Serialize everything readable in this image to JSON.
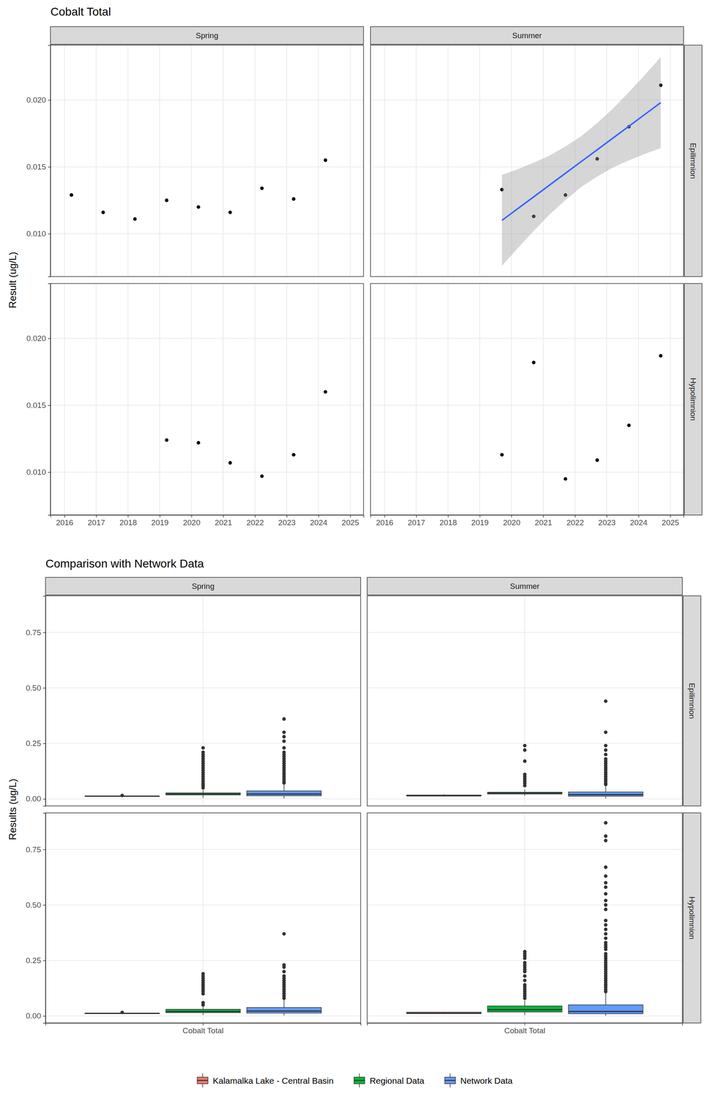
{
  "chart_data": [
    {
      "type": "scatter",
      "title": "Cobalt Total",
      "y_label": "Result (ug/L)",
      "columns": [
        "Spring",
        "Summer"
      ],
      "rows": [
        "Epilimnion",
        "Hypolimnion"
      ],
      "xlim": [
        2015.56,
        2025.42
      ],
      "xticks": [
        2016,
        2017,
        2018,
        2019,
        2020,
        2021,
        2022,
        2023,
        2024,
        2025
      ],
      "ylim": [
        0.0068,
        0.0241
      ],
      "yticks": [
        {
          "value": 0.01,
          "label": "0.010"
        },
        {
          "value": 0.015,
          "label": "0.015"
        },
        {
          "value": 0.02,
          "label": "0.020"
        }
      ],
      "grid": true,
      "color": "#000000",
      "panels": [
        [
          {
            "x": [
              2016.22,
              2017.22,
              2018.22,
              2019.22,
              2020.22,
              2021.22,
              2022.22,
              2023.22,
              2024.22
            ],
            "values": [
              0.0129,
              0.0116,
              0.0111,
              0.0125,
              0.012,
              0.0116,
              0.0134,
              0.0126,
              0.0155
            ]
          },
          {
            "x": [
              2019.7,
              2020.7,
              2021.7,
              2022.7,
              2023.7,
              2024.7
            ],
            "values": [
              0.0133,
              0.0113,
              0.0129,
              0.0156,
              0.018,
              0.0211
            ],
            "trend": {
              "type": "line",
              "color": "#3366FF",
              "x": [
                2019.7,
                2020.2,
                2020.7,
                2021.2,
                2021.7,
                2022.2,
                2022.7,
                2023.2,
                2023.7,
                2024.2,
                2024.7
              ],
              "values": [
                0.011,
                0.01188,
                0.01276,
                0.01364,
                0.01452,
                0.0154,
                0.01628,
                0.01716,
                0.01804,
                0.01892,
                0.0198
              ],
              "lower": [
                0.0076,
                0.00893,
                0.01021,
                0.01144,
                0.01252,
                0.0135,
                0.01428,
                0.01496,
                0.01549,
                0.01597,
                0.0164
              ],
              "upper": [
                0.0144,
                0.01483,
                0.01531,
                0.01584,
                0.01652,
                0.0173,
                0.01828,
                0.01936,
                0.02059,
                0.02187,
                0.0232
              ]
            }
          }
        ],
        [
          {
            "x": [
              2019.22,
              2020.22,
              2021.22,
              2022.22,
              2023.22,
              2024.22
            ],
            "values": [
              0.0124,
              0.0122,
              0.0107,
              0.0097,
              0.0113,
              0.016
            ]
          },
          {
            "x": [
              2019.7,
              2020.7,
              2021.7,
              2022.7,
              2023.7,
              2024.7
            ],
            "values": [
              0.0113,
              0.0182,
              0.0095,
              0.0109,
              0.0135,
              0.0187
            ]
          }
        ]
      ]
    },
    {
      "type": "box",
      "title": "Comparison with Network Data",
      "y_label": "Results (ug/L)",
      "columns": [
        "Spring",
        "Summer"
      ],
      "rows": [
        "Epilimnion",
        "Hypolimnion"
      ],
      "categories": [
        "Cobalt Total"
      ],
      "ylim": [
        -0.0316,
        0.9146
      ],
      "yticks": [
        {
          "value": 0,
          "label": "0.00"
        },
        {
          "value": 0.25,
          "label": "0.25"
        },
        {
          "value": 0.5,
          "label": "0.50"
        },
        {
          "value": 0.75,
          "label": "0.75"
        }
      ],
      "grid": true,
      "legend": "bottom",
      "series": [
        {
          "name": "Kalamalka Lake - Central Basin",
          "color": "#F8766D"
        },
        {
          "name": "Regional Data",
          "color": "#00BA38"
        },
        {
          "name": "Network Data",
          "color": "#619CFF"
        }
      ],
      "panels": [
        [
          {
            "boxes": [
              {
                "min": 0.0111,
                "q1": 0.0116,
                "median": 0.0125,
                "q3": 0.0129,
                "max": 0.0134,
                "outliers": [
                  0.0155
                ]
              },
              {
                "min": 0.005,
                "q1": 0.018,
                "median": 0.022,
                "q3": 0.027,
                "max": 0.04,
                "outliers": [
                  0.05,
                  0.06,
                  0.065,
                  0.07,
                  0.08,
                  0.09,
                  0.1,
                  0.11,
                  0.12,
                  0.13,
                  0.14,
                  0.15,
                  0.16,
                  0.17,
                  0.18,
                  0.19,
                  0.2,
                  0.21,
                  0.23
                ]
              },
              {
                "min": 0.002,
                "q1": 0.014,
                "median": 0.022,
                "q3": 0.036,
                "max": 0.069,
                "outliers": [
                  0.072,
                  0.08,
                  0.09,
                  0.1,
                  0.11,
                  0.12,
                  0.13,
                  0.14,
                  0.15,
                  0.16,
                  0.17,
                  0.18,
                  0.19,
                  0.2,
                  0.21,
                  0.23,
                  0.26,
                  0.28,
                  0.3,
                  0.36
                ]
              }
            ]
          },
          {
            "boxes": [
              {
                "min": 0.0113,
                "q1": 0.013,
                "median": 0.01445,
                "q3": 0.0174,
                "max": 0.0211,
                "outliers": []
              },
              {
                "min": 0.014,
                "q1": 0.022,
                "median": 0.026,
                "q3": 0.03,
                "max": 0.042,
                "outliers": [
                  0.06,
                  0.07,
                  0.08,
                  0.09,
                  0.1,
                  0.11,
                  0.17,
                  0.22,
                  0.24
                ]
              },
              {
                "min": 0.002,
                "q1": 0.012,
                "median": 0.019,
                "q3": 0.031,
                "max": 0.059,
                "outliers": [
                  0.065,
                  0.07,
                  0.08,
                  0.09,
                  0.1,
                  0.11,
                  0.12,
                  0.13,
                  0.14,
                  0.15,
                  0.16,
                  0.17,
                  0.18,
                  0.2,
                  0.22,
                  0.24,
                  0.3,
                  0.44
                ]
              }
            ]
          }
        ],
        [
          {
            "boxes": [
              {
                "min": 0.0097,
                "q1": 0.01085,
                "median": 0.01175,
                "q3": 0.01235,
                "max": 0.0124,
                "outliers": [
                  0.016
                ]
              },
              {
                "min": 0.004,
                "q1": 0.015,
                "median": 0.02,
                "q3": 0.03,
                "max": 0.045,
                "outliers": [
                  0.05,
                  0.06,
                  0.1,
                  0.11,
                  0.12,
                  0.13,
                  0.14,
                  0.15,
                  0.16,
                  0.17,
                  0.18,
                  0.19
                ]
              },
              {
                "min": 0.002,
                "q1": 0.013,
                "median": 0.022,
                "q3": 0.038,
                "max": 0.075,
                "outliers": [
                  0.08,
                  0.09,
                  0.1,
                  0.11,
                  0.12,
                  0.13,
                  0.14,
                  0.15,
                  0.16,
                  0.17,
                  0.18,
                  0.2,
                  0.22,
                  0.23,
                  0.37
                ]
              }
            ]
          },
          {
            "boxes": [
              {
                "min": 0.0095,
                "q1": 0.011,
                "median": 0.0124,
                "q3": 0.01703,
                "max": 0.0187,
                "outliers": []
              },
              {
                "min": 0.004,
                "q1": 0.018,
                "median": 0.028,
                "q3": 0.045,
                "max": 0.07,
                "outliers": [
                  0.08,
                  0.09,
                  0.1,
                  0.11,
                  0.12,
                  0.13,
                  0.14,
                  0.16,
                  0.18,
                  0.2,
                  0.21,
                  0.22,
                  0.23,
                  0.24,
                  0.26,
                  0.27,
                  0.28,
                  0.29
                ]
              },
              {
                "min": 0.001,
                "q1": 0.01,
                "median": 0.02,
                "q3": 0.05,
                "max": 0.105,
                "outliers": [
                  0.11,
                  0.12,
                  0.13,
                  0.14,
                  0.15,
                  0.16,
                  0.17,
                  0.18,
                  0.19,
                  0.2,
                  0.21,
                  0.22,
                  0.23,
                  0.24,
                  0.25,
                  0.26,
                  0.27,
                  0.28,
                  0.3,
                  0.31,
                  0.32,
                  0.33,
                  0.35,
                  0.37,
                  0.39,
                  0.41,
                  0.43,
                  0.48,
                  0.5,
                  0.52,
                  0.55,
                  0.58,
                  0.6,
                  0.63,
                  0.67,
                  0.79,
                  0.81,
                  0.87
                ]
              }
            ]
          }
        ]
      ]
    }
  ]
}
